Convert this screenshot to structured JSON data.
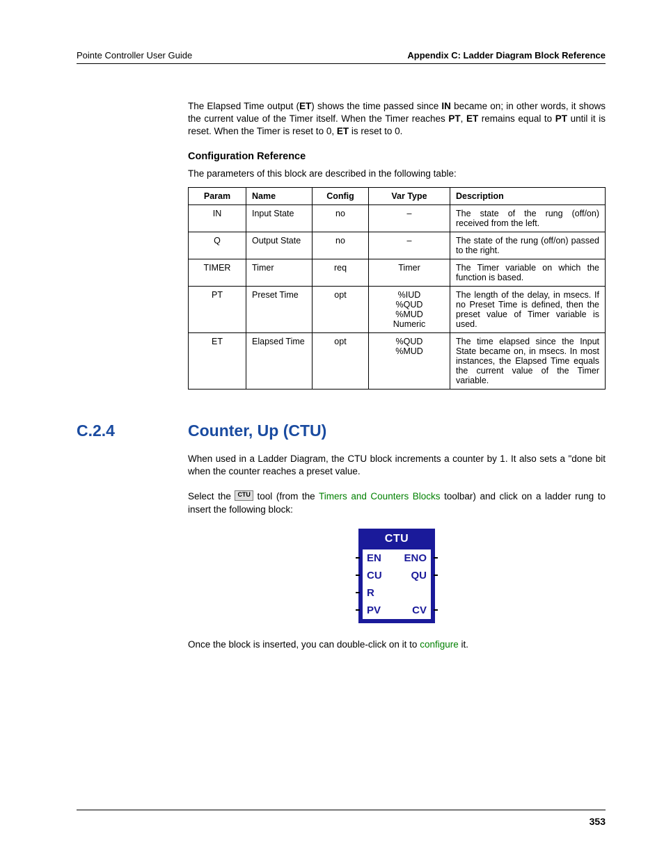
{
  "header": {
    "left": "Pointe Controller User Guide",
    "right": "Appendix C: Ladder Diagram Block Reference"
  },
  "intro_para_parts": {
    "p1a": "The Elapsed Time output (",
    "p1b": "ET",
    "p1c": ") shows the time passed since ",
    "p1d": "IN",
    "p1e": " became on; in other words, it shows the current value of the Timer itself. When the Timer reaches ",
    "p1f": "PT",
    "p1g": ", ",
    "p1h": "ET",
    "p1i": " remains equal to ",
    "p1j": "PT",
    "p1k": " until it is reset. When the Timer is reset to 0, ",
    "p1l": "ET",
    "p1m": " is reset to 0."
  },
  "config_ref": {
    "heading": "Configuration Reference",
    "lead": "The parameters of this block are described in the following table:",
    "columns": [
      "Param",
      "Name",
      "Config",
      "Var Type",
      "Description"
    ],
    "rows": [
      {
        "param": "IN",
        "name": "Input State",
        "config": "no",
        "vartype": "–",
        "desc": "The state of the rung (off/on) received from the left."
      },
      {
        "param": "Q",
        "name": "Output State",
        "config": "no",
        "vartype": "–",
        "desc": "The state of the rung (off/on) passed to the right."
      },
      {
        "param": "TIMER",
        "name": "Timer",
        "config": "req",
        "vartype": "Timer",
        "desc": "The Timer variable on which the function is based."
      },
      {
        "param": "PT",
        "name": "Preset Time",
        "config": "opt",
        "vartype": "%IUD\n%QUD\n%MUD\nNumeric",
        "desc": "The length of the delay, in msecs. If no Preset Time is defined, then the preset value of Timer variable is used."
      },
      {
        "param": "ET",
        "name": "Elapsed Time",
        "config": "opt",
        "vartype": "%QUD\n%MUD",
        "desc": "The time elapsed since the Input State became on, in msecs. In most instances, the Elapsed Time equals the current value of the Timer variable."
      }
    ]
  },
  "section": {
    "number": "C.2.4",
    "title": "Counter, Up (CTU)",
    "para1": "When used in a Ladder Diagram, the CTU block increments a counter by 1. It also sets a \"done bit when the counter reaches a preset value.",
    "para2a": "Select the ",
    "tool_label": "CTU",
    "para2b": " tool (from the ",
    "link1": "Timers and Counters Blocks",
    "para2c": " toolbar) and click on a ladder rung to insert the following block:",
    "para3a": "Once the block is inserted, you can double-click on it to ",
    "link2": "configure",
    "para3b": " it."
  },
  "ctu_block": {
    "title": "CTU",
    "rows": [
      {
        "left": "EN",
        "right": "ENO",
        "pin_left": true,
        "pin_right": true
      },
      {
        "left": "CU",
        "right": "QU",
        "pin_left": true,
        "pin_right": true
      },
      {
        "left": "R",
        "right": "",
        "pin_left": true,
        "pin_right": false
      },
      {
        "left": "PV",
        "right": "CV",
        "pin_left": true,
        "pin_right": true
      }
    ],
    "colors": {
      "frame": "#1a1a9a",
      "label": "#1a1a9a",
      "title": "#ffffff",
      "body_bg": "#ffffff"
    }
  },
  "page_number": "353"
}
